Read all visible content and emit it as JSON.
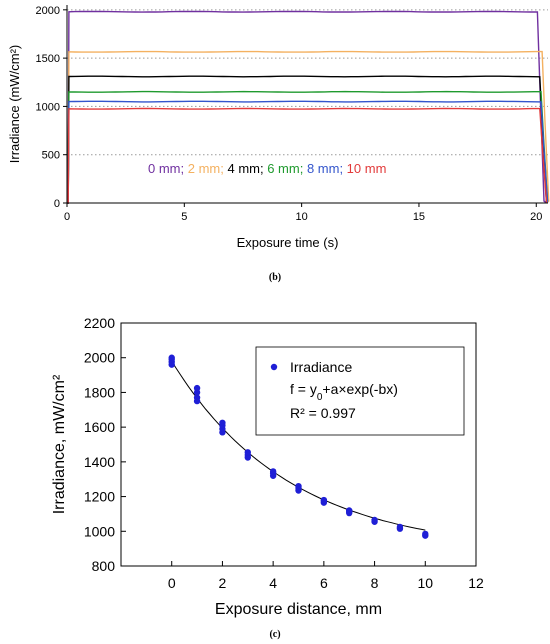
{
  "chart_data": [
    {
      "type": "line",
      "panel_label": "(b)",
      "xlabel": "Exposure time (s)",
      "ylabel": "Irradiance (mW/cm²)",
      "xlim": [
        0,
        20.5
      ],
      "ylim": [
        0,
        2050
      ],
      "xticks": [
        "0",
        "5",
        "10",
        "15",
        "20"
      ],
      "yticks": [
        "0",
        "500",
        "1000",
        "1500",
        "2000"
      ],
      "grid": "horizontal dotted",
      "annotation": [
        {
          "text": "0 mm;",
          "color": "#7030a0"
        },
        {
          "text": " 2 mm;",
          "color": "#f4b160"
        },
        {
          "text": " 4 mm;",
          "color": "#000000"
        },
        {
          "text": " 6 mm;",
          "color": "#1f9a2e"
        },
        {
          "text": " 8 mm;",
          "color": "#3355cc"
        },
        {
          "text": " 10 mm",
          "color": "#e23a3a"
        }
      ],
      "series": [
        {
          "distance": "0 mm",
          "color": "#7030a0",
          "on": 0.05,
          "off": 20.05,
          "level": 1980
        },
        {
          "distance": "2 mm",
          "color": "#f4b160",
          "on": 0.05,
          "off": 20.25,
          "level": 1565
        },
        {
          "distance": "4 mm",
          "color": "#000000",
          "on": 0.05,
          "off": 20.15,
          "level": 1310
        },
        {
          "distance": "6 mm",
          "color": "#1f9a2e",
          "on": 0.05,
          "off": 20.2,
          "level": 1150
        },
        {
          "distance": "8 mm",
          "color": "#3355cc",
          "on": 0.05,
          "off": 20.2,
          "level": 1050
        },
        {
          "distance": "10 mm",
          "color": "#e23a3a",
          "on": 0.05,
          "off": 20.15,
          "level": 975
        }
      ]
    },
    {
      "type": "scatter",
      "panel_label": "(c)",
      "xlabel": "Exposure distance, mm",
      "ylabel": "Irradiance, mW/cm²",
      "xlim": [
        -2,
        12
      ],
      "ylim": [
        800,
        2200
      ],
      "xticks": [
        "0",
        "2",
        "4",
        "6",
        "8",
        "10",
        "12"
      ],
      "yticks": [
        "800",
        "1000",
        "1200",
        "1400",
        "1600",
        "1800",
        "2000",
        "2200"
      ],
      "legend": {
        "placement": "top-right",
        "marker_label": "Irradiance",
        "fit_label": "f = y0+a×exp(-bx)",
        "r2_label": "R² = 0.997"
      },
      "point_color": "#1f1fd6",
      "points": [
        [
          0,
          1960
        ],
        [
          0,
          1975
        ],
        [
          0,
          1990
        ],
        [
          0,
          2000
        ],
        [
          1,
          1750
        ],
        [
          1,
          1770
        ],
        [
          1,
          1800
        ],
        [
          1,
          1825
        ],
        [
          2,
          1570
        ],
        [
          2,
          1590
        ],
        [
          2,
          1610
        ],
        [
          2,
          1625
        ],
        [
          3,
          1425
        ],
        [
          3,
          1440
        ],
        [
          3,
          1455
        ],
        [
          4,
          1320
        ],
        [
          4,
          1335
        ],
        [
          4,
          1345
        ],
        [
          5,
          1235
        ],
        [
          5,
          1250
        ],
        [
          5,
          1260
        ],
        [
          6,
          1165
        ],
        [
          6,
          1175
        ],
        [
          6,
          1180
        ],
        [
          7,
          1105
        ],
        [
          7,
          1115
        ],
        [
          7,
          1120
        ],
        [
          8,
          1055
        ],
        [
          8,
          1065
        ],
        [
          9,
          1015
        ],
        [
          9,
          1025
        ],
        [
          10,
          975
        ],
        [
          10,
          985
        ]
      ],
      "fit": {
        "y0": 880,
        "a": 1100,
        "b": 0.216
      }
    }
  ]
}
